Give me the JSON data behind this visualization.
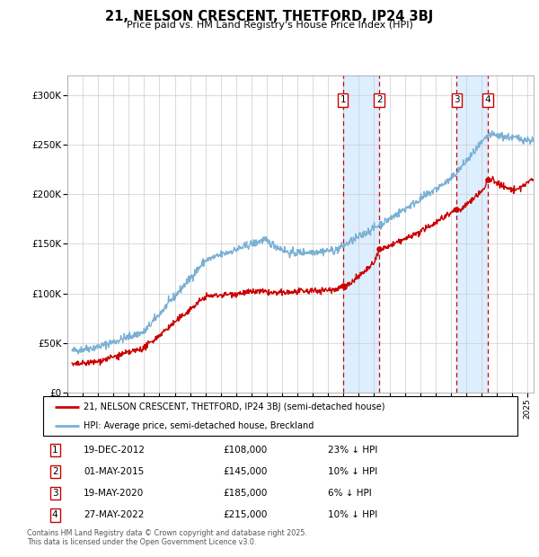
{
  "title": "21, NELSON CRESCENT, THETFORD, IP24 3BJ",
  "subtitle": "Price paid vs. HM Land Registry's House Price Index (HPI)",
  "legend_house": "21, NELSON CRESCENT, THETFORD, IP24 3BJ (semi-detached house)",
  "legend_hpi": "HPI: Average price, semi-detached house, Breckland",
  "footer": "Contains HM Land Registry data © Crown copyright and database right 2025.\nThis data is licensed under the Open Government Licence v3.0.",
  "sale_events": [
    {
      "num": 1,
      "date": "19-DEC-2012",
      "price": "£108,000",
      "pct": "23% ↓ HPI",
      "x_year": 2012.97
    },
    {
      "num": 2,
      "date": "01-MAY-2015",
      "price": "£145,000",
      "pct": "10% ↓ HPI",
      "x_year": 2015.33
    },
    {
      "num": 3,
      "date": "19-MAY-2020",
      "price": "£185,000",
      "pct": "6% ↓ HPI",
      "x_year": 2020.38
    },
    {
      "num": 4,
      "date": "27-MAY-2022",
      "price": "£215,000",
      "pct": "10% ↓ HPI",
      "x_year": 2022.41
    }
  ],
  "house_color": "#cc0000",
  "hpi_color": "#7ab0d4",
  "shade_color": "#ddeeff",
  "dashed_color": "#cc0000",
  "ylim": [
    0,
    320000
  ],
  "xlim_start": 1995.3,
  "xlim_end": 2025.4,
  "yticks": [
    0,
    50000,
    100000,
    150000,
    200000,
    250000,
    300000
  ],
  "ytick_labels": [
    "£0",
    "£50K",
    "£100K",
    "£150K",
    "£200K",
    "£250K",
    "£300K"
  ]
}
